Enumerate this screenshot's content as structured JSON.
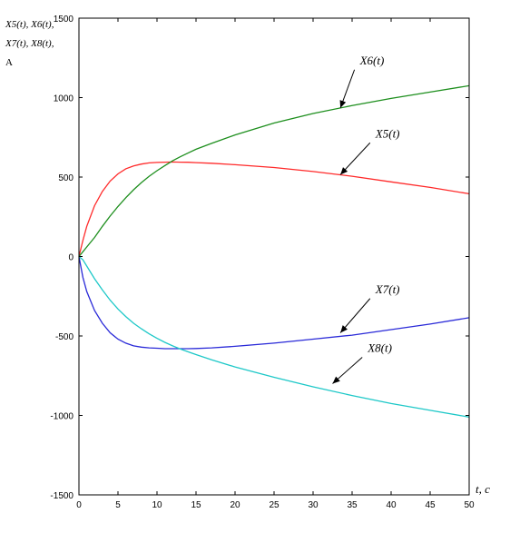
{
  "chart_data": {
    "type": "line",
    "ylabel_lines": [
      "X5(t), X6(t),",
      "X7(t), X8(t),",
      "A"
    ],
    "xlabel": "t, c",
    "xlim": [
      0,
      50
    ],
    "ylim": [
      -1500,
      1500
    ],
    "x_ticks": [
      0,
      5,
      10,
      15,
      20,
      25,
      30,
      35,
      40,
      45,
      50
    ],
    "y_ticks": [
      -1500,
      -1000,
      -500,
      0,
      500,
      1000,
      1500
    ],
    "grid": false,
    "series": [
      {
        "name": "X5(t)",
        "color": "#ff2a2a",
        "x": [
          0,
          0.5,
          1,
          2,
          3,
          4,
          5,
          6,
          7,
          8,
          9,
          10,
          11,
          12,
          13,
          14,
          15,
          17,
          20,
          25,
          30,
          35,
          40,
          45,
          50
        ],
        "y": [
          0,
          100,
          190,
          320,
          410,
          475,
          520,
          552,
          570,
          582,
          589,
          592,
          594,
          595,
          594,
          593,
          591,
          587,
          578,
          560,
          535,
          505,
          470,
          435,
          395
        ]
      },
      {
        "name": "X6(t)",
        "color": "#1e8f1e",
        "x": [
          0,
          0.5,
          1,
          2,
          3,
          4,
          5,
          6,
          7,
          8,
          9,
          10,
          11,
          12,
          13,
          14,
          15,
          17,
          20,
          25,
          30,
          35,
          40,
          45,
          50
        ],
        "y": [
          0,
          30,
          60,
          120,
          190,
          255,
          315,
          370,
          420,
          465,
          505,
          540,
          572,
          602,
          628,
          652,
          675,
          712,
          765,
          840,
          900,
          950,
          995,
          1035,
          1075
        ]
      },
      {
        "name": "X7(t)",
        "color": "#2a2ad8",
        "x": [
          0,
          0.5,
          1,
          2,
          3,
          4,
          5,
          6,
          7,
          8,
          9,
          10,
          11,
          12,
          13,
          14,
          15,
          17,
          20,
          25,
          30,
          35,
          40,
          45,
          50
        ],
        "y": [
          0,
          -130,
          -220,
          -340,
          -420,
          -480,
          -520,
          -545,
          -562,
          -570,
          -575,
          -577,
          -580,
          -580,
          -580,
          -580,
          -579,
          -575,
          -565,
          -545,
          -520,
          -495,
          -460,
          -425,
          -385
        ]
      },
      {
        "name": "X8(t)",
        "color": "#1ec8c8",
        "x": [
          0,
          0.5,
          1,
          2,
          3,
          4,
          5,
          6,
          7,
          8,
          9,
          10,
          11,
          12,
          13,
          14,
          15,
          17,
          20,
          25,
          30,
          35,
          40,
          45,
          50
        ],
        "y": [
          0,
          -20,
          -60,
          -140,
          -210,
          -275,
          -330,
          -378,
          -420,
          -455,
          -487,
          -515,
          -540,
          -562,
          -582,
          -600,
          -617,
          -650,
          -695,
          -760,
          -820,
          -875,
          -925,
          -968,
          -1010
        ]
      }
    ],
    "annotations": [
      {
        "label": "X6(t)",
        "series": "X6(t)",
        "text_x": 36,
        "text_y": 1210,
        "arrow_to_x": 33.5,
        "arrow_to_y": 935
      },
      {
        "label": "X5(t)",
        "series": "X5(t)",
        "text_x": 38,
        "text_y": 750,
        "arrow_to_x": 33.5,
        "arrow_to_y": 515
      },
      {
        "label": "X7(t)",
        "series": "X7(t)",
        "text_x": 38,
        "text_y": -230,
        "arrow_to_x": 33.5,
        "arrow_to_y": -480
      },
      {
        "label": "X8(t)",
        "series": "X8(t)",
        "text_x": 37,
        "text_y": -600,
        "arrow_to_x": 32.5,
        "arrow_to_y": -800
      }
    ]
  }
}
